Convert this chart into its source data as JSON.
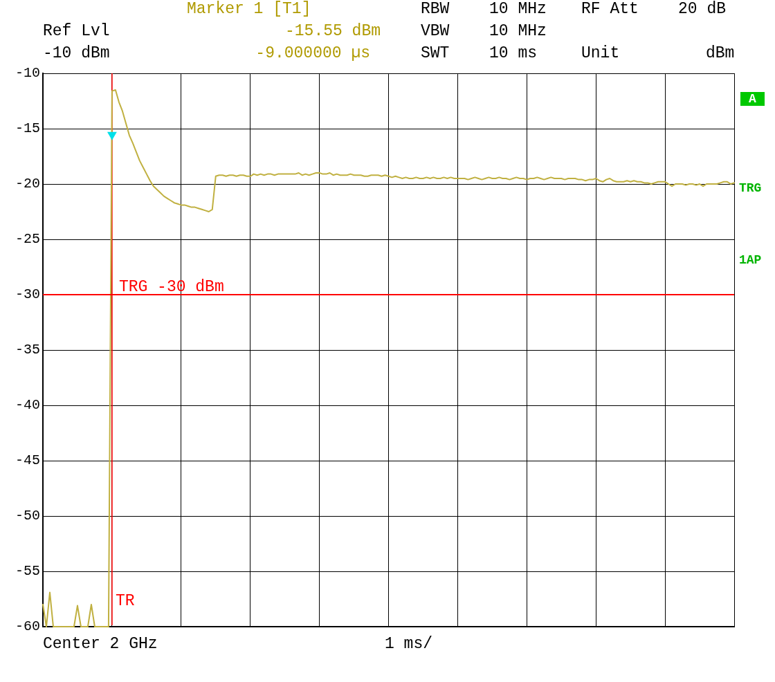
{
  "chart_data": {
    "type": "line",
    "categories": [
      null,
      null,
      null,
      null,
      null,
      null,
      null,
      null,
      null,
      null,
      null,
      null,
      null,
      null,
      null,
      null,
      null,
      null,
      null,
      null,
      null,
      null,
      null,
      null,
      null,
      null,
      null,
      null,
      null,
      null,
      null,
      null,
      null,
      null,
      null,
      null,
      null,
      null,
      null,
      null,
      null,
      null,
      null,
      null,
      null,
      null,
      null,
      null,
      null,
      null,
      null,
      null,
      null,
      null,
      null,
      null,
      null,
      null,
      null,
      null,
      null,
      null,
      null,
      null,
      null,
      null,
      null,
      null,
      null,
      null,
      null,
      null,
      null,
      null,
      null,
      null,
      null,
      null,
      null,
      null,
      null,
      null,
      null,
      null,
      null,
      null,
      null,
      null,
      null,
      null,
      null,
      null,
      null,
      null,
      null,
      null,
      null,
      null,
      null,
      null,
      null,
      null,
      null,
      null,
      null,
      null,
      null,
      null,
      null,
      null,
      null,
      null,
      null,
      null,
      null,
      null,
      null,
      null,
      null,
      null,
      null,
      null,
      null,
      null,
      null,
      null,
      null,
      null,
      null,
      null,
      null,
      null,
      null,
      null,
      null,
      null,
      null,
      null,
      null,
      null,
      null,
      null,
      null,
      null,
      null,
      null,
      null,
      null,
      null,
      null,
      null,
      null,
      null,
      null,
      null,
      null,
      null,
      null,
      null,
      null,
      null,
      null,
      null,
      null,
      null,
      null,
      null,
      null,
      null,
      null,
      null,
      null,
      null,
      null,
      null,
      null,
      null,
      null,
      null,
      null,
      null,
      null,
      null,
      null,
      null,
      null,
      null,
      null,
      null,
      null,
      null,
      null,
      null,
      null,
      null,
      null,
      null,
      null,
      null,
      null,
      null
    ],
    "ylim": [
      -60,
      -10
    ],
    "yticks": [
      -60,
      -55,
      -50,
      -45,
      -40,
      -35,
      -30,
      -25,
      -20,
      -15,
      -10
    ],
    "grid": true,
    "series": [
      {
        "color": "#c0b040",
        "values": [
          -58.0,
          -60,
          -56.9,
          -60,
          -60,
          -60,
          -60,
          -60,
          -60,
          -60,
          -58.1,
          -60,
          -60,
          -60,
          -58.0,
          -60,
          -60,
          -60,
          -60,
          -60,
          -11.6,
          -11.5,
          -12.6,
          -13.4,
          -14.5,
          -15.6,
          -16.3,
          -17.1,
          -17.9,
          -18.5,
          -19.1,
          -19.7,
          -20.2,
          -20.5,
          -20.8,
          -21.1,
          -21.3,
          -21.5,
          -21.7,
          -21.8,
          -21.9,
          -21.9,
          -22.0,
          -22.1,
          -22.1,
          -22.2,
          -22.3,
          -22.4,
          -22.5,
          -22.3,
          -19.3,
          -19.2,
          -19.2,
          -19.3,
          -19.2,
          -19.2,
          -19.3,
          -19.2,
          -19.2,
          -19.3,
          -19.3,
          -19.1,
          -19.2,
          -19.1,
          -19.2,
          -19.1,
          -19.1,
          -19.2,
          -19.1,
          -19.1,
          -19.1,
          -19.1,
          -19.1,
          -19.1,
          -19.0,
          -19.2,
          -19.1,
          -19.2,
          -19.1,
          -19.0,
          -19.0,
          -19.1,
          -19.1,
          -19.0,
          -19.2,
          -19.1,
          -19.2,
          -19.2,
          -19.2,
          -19.1,
          -19.2,
          -19.2,
          -19.2,
          -19.3,
          -19.3,
          -19.2,
          -19.2,
          -19.2,
          -19.3,
          -19.2,
          -19.3,
          -19.4,
          -19.3,
          -19.4,
          -19.5,
          -19.4,
          -19.5,
          -19.5,
          -19.4,
          -19.5,
          -19.5,
          -19.4,
          -19.5,
          -19.4,
          -19.5,
          -19.5,
          -19.4,
          -19.5,
          -19.4,
          -19.5,
          -19.5,
          -19.5,
          -19.5,
          -19.6,
          -19.5,
          -19.4,
          -19.5,
          -19.6,
          -19.5,
          -19.4,
          -19.5,
          -19.5,
          -19.4,
          -19.5,
          -19.5,
          -19.6,
          -19.5,
          -19.4,
          -19.5,
          -19.5,
          -19.6,
          -19.5,
          -19.5,
          -19.4,
          -19.5,
          -19.6,
          -19.5,
          -19.4,
          -19.5,
          -19.5,
          -19.5,
          -19.6,
          -19.5,
          -19.5,
          -19.5,
          -19.6,
          -19.6,
          -19.7,
          -19.6,
          -19.6,
          -19.5,
          -19.7,
          -19.8,
          -19.6,
          -19.5,
          -19.7,
          -19.8,
          -19.8,
          -19.8,
          -19.7,
          -19.8,
          -19.7,
          -19.8,
          -19.8,
          -19.9,
          -19.9,
          -20.0,
          -19.9,
          -19.8,
          -19.8,
          -19.8,
          -20.0,
          -20.2,
          -20.0,
          -20.0,
          -20.0,
          -20.1,
          -20.0,
          -20.0,
          -20.1,
          -20.0,
          -20.2,
          -20.0,
          -20.0,
          -20.0,
          -20.0,
          -19.9,
          -19.8,
          -19.8,
          -20.0,
          -19.9
        ]
      },
      {
        "type": "scatter",
        "marker": "triangle",
        "color": "#00e0e8",
        "values": [
          null,
          null,
          null,
          null,
          null,
          null,
          null,
          null,
          null,
          null,
          null,
          null,
          null,
          null,
          null,
          null,
          null,
          null,
          null,
          null,
          -15.55,
          null,
          null,
          null,
          null,
          null,
          null,
          null,
          null,
          null,
          null,
          null,
          null,
          null,
          null,
          null,
          null,
          null,
          null,
          null,
          null,
          null,
          null,
          null,
          null,
          null,
          null,
          null,
          null,
          null,
          null,
          null,
          null,
          null,
          null,
          null,
          null,
          null,
          null,
          null,
          null,
          null,
          null,
          null,
          null,
          null,
          null,
          null,
          null,
          null,
          null,
          null,
          null,
          null,
          null,
          null,
          null,
          null,
          null,
          null,
          null,
          null,
          null,
          null,
          null,
          null,
          null,
          null,
          null,
          null,
          null,
          null,
          null,
          null,
          null,
          null,
          null,
          null,
          null,
          null,
          null,
          null,
          null,
          null,
          null,
          null,
          null,
          null,
          null,
          null,
          null,
          null,
          null,
          null,
          null,
          null,
          null,
          null,
          null,
          null,
          null,
          null,
          null,
          null,
          null,
          null,
          null,
          null,
          null,
          null,
          null,
          null,
          null,
          null,
          null,
          null,
          null,
          null,
          null,
          null,
          null,
          null,
          null,
          null,
          null,
          null,
          null,
          null,
          null,
          null,
          null,
          null,
          null,
          null,
          null,
          null,
          null,
          null,
          null,
          null,
          null,
          null,
          null,
          null,
          null,
          null,
          null,
          null,
          null,
          null,
          null,
          null,
          null,
          null,
          null,
          null,
          null,
          null,
          null,
          null,
          null,
          null,
          null,
          null,
          null,
          null,
          null,
          null,
          null,
          null,
          null,
          null,
          null,
          null,
          null,
          null,
          null,
          null,
          null,
          null,
          null
        ]
      }
    ],
    "ref_lines": [
      {
        "axis": "y",
        "value": -30,
        "label": "TRG -30 dBm",
        "color": "#ff0000"
      }
    ],
    "annotations": [
      "Ref Lvl",
      "-10 dBm",
      "Marker 1 [T1]",
      "-15.55 dBm",
      "-9.000000 µs",
      "RBW",
      "10 MHz",
      "VBW",
      "10 MHz",
      "SWT",
      "10 ms",
      "RF Att",
      "20 dB",
      "Unit",
      "dBm",
      "Center 2 GHz",
      "1 ms/",
      "A",
      "TRG",
      "1AP",
      "TR"
    ]
  }
}
